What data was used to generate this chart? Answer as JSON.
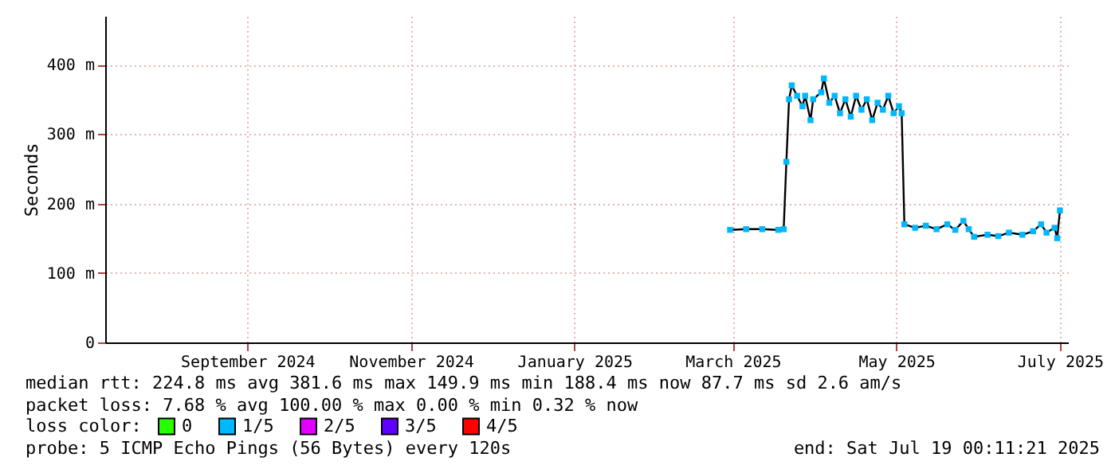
{
  "chart_data": {
    "type": "line",
    "ylabel": "Seconds",
    "legend_title": "loss color:",
    "legend": "bottom",
    "grid": true,
    "x": [
      "2025-03-14",
      "2025-03-20",
      "2025-03-26",
      "2025-04-01",
      "2025-04-03",
      "2025-04-04",
      "2025-04-05",
      "2025-04-06",
      "2025-04-08",
      "2025-04-10",
      "2025-04-11",
      "2025-04-13",
      "2025-04-14",
      "2025-04-17",
      "2025-04-18",
      "2025-04-20",
      "2025-04-22",
      "2025-04-24",
      "2025-04-26",
      "2025-04-28",
      "2025-04-30",
      "2025-05-02",
      "2025-05-04",
      "2025-05-06",
      "2025-05-08",
      "2025-05-10",
      "2025-05-12",
      "2025-05-14",
      "2025-05-16",
      "2025-05-17",
      "2025-05-18",
      "2025-05-22",
      "2025-05-26",
      "2025-05-30",
      "2025-06-03",
      "2025-06-06",
      "2025-06-09",
      "2025-06-11",
      "2025-06-13",
      "2025-06-18",
      "2025-06-22",
      "2025-06-26",
      "2025-07-01",
      "2025-07-05",
      "2025-07-08",
      "2025-07-10",
      "2025-07-13",
      "2025-07-14",
      "2025-07-15"
    ],
    "series": [
      {
        "type": "scatter",
        "name": "0",
        "color": "#26ff00",
        "values": [
          null,
          null,
          null,
          null,
          null,
          null,
          null,
          null,
          null,
          null,
          null,
          null,
          null,
          null,
          null,
          null,
          null,
          null,
          null,
          null,
          null,
          null,
          null,
          null,
          null,
          null,
          null,
          null,
          null,
          null,
          null,
          null,
          null,
          null,
          null,
          null,
          null,
          null,
          null,
          null,
          null,
          null,
          null,
          null,
          null,
          null,
          null,
          null,
          null
        ]
      },
      {
        "type": "scatter",
        "name": "1/5",
        "color": "#00b8ff",
        "values": [
          162,
          163,
          163,
          162,
          163,
          260,
          350,
          370,
          355,
          340,
          355,
          320,
          350,
          360,
          380,
          345,
          355,
          330,
          350,
          325,
          355,
          335,
          350,
          320,
          345,
          335,
          355,
          330,
          340,
          330,
          170,
          165,
          168,
          163,
          170,
          162,
          175,
          163,
          152,
          155,
          153,
          158,
          155,
          160,
          170,
          158,
          165,
          150,
          190
        ]
      },
      {
        "type": "scatter",
        "name": "2/5",
        "color": "#e000ff",
        "values": [
          null,
          null,
          null,
          null,
          null,
          null,
          null,
          null,
          null,
          null,
          null,
          null,
          null,
          null,
          null,
          null,
          null,
          null,
          null,
          null,
          null,
          null,
          null,
          null,
          null,
          null,
          null,
          null,
          null,
          null,
          null,
          null,
          null,
          null,
          null,
          null,
          null,
          null,
          null,
          null,
          null,
          null,
          null,
          null,
          null,
          null,
          null,
          null,
          null
        ]
      },
      {
        "type": "scatter",
        "name": "3/5",
        "color": "#5e00ff",
        "values": [
          null,
          null,
          null,
          null,
          null,
          null,
          null,
          null,
          null,
          null,
          null,
          null,
          null,
          null,
          null,
          null,
          null,
          null,
          null,
          null,
          null,
          null,
          null,
          null,
          null,
          null,
          null,
          null,
          null,
          null,
          null,
          null,
          null,
          null,
          null,
          null,
          null,
          null,
          null,
          null,
          null,
          null,
          null,
          null,
          null,
          null,
          null,
          null,
          null
        ]
      },
      {
        "type": "scatter",
        "name": "4/5",
        "color": "#ff0000",
        "values": [
          null,
          null,
          null,
          null,
          null,
          null,
          null,
          null,
          null,
          null,
          null,
          null,
          null,
          null,
          null,
          null,
          null,
          null,
          null,
          null,
          null,
          null,
          null,
          null,
          null,
          null,
          null,
          null,
          null,
          null,
          null,
          null,
          null,
          null,
          null,
          null,
          null,
          null,
          null,
          null,
          null,
          null,
          null,
          null,
          null,
          null,
          null,
          null,
          null
        ]
      },
      {
        "color": "#000000",
        "values": [
          162,
          163,
          163,
          162,
          163,
          260,
          350,
          370,
          355,
          340,
          355,
          320,
          350,
          360,
          380,
          345,
          355,
          330,
          350,
          325,
          355,
          335,
          350,
          320,
          345,
          335,
          355,
          330,
          340,
          330,
          170,
          165,
          168,
          163,
          170,
          162,
          175,
          163,
          152,
          155,
          153,
          158,
          155,
          160,
          170,
          158,
          165,
          150,
          190
        ]
      }
    ],
    "xlim": [
      "2024-07-24",
      "2025-07-18"
    ],
    "xticks": [
      {
        "value": "2024-09-15",
        "label": "September 2024"
      },
      {
        "value": "2024-11-15",
        "label": "November 2024"
      },
      {
        "value": "2025-01-15",
        "label": "January 2025"
      },
      {
        "value": "2025-03-15",
        "label": "March 2025"
      },
      {
        "value": "2025-05-15",
        "label": "May 2025"
      },
      {
        "value": "2025-07-15",
        "label": "July 2025"
      }
    ],
    "ylim": [
      0,
      470
    ],
    "yticks": [
      0,
      {
        "value": 100,
        "label": "100 m"
      },
      {
        "value": 200,
        "label": "200 m"
      },
      {
        "value": 300,
        "label": "300 m"
      },
      {
        "value": 400,
        "label": "400 m"
      }
    ],
    "annotations": [
      "median rtt:  224.8 ms avg  381.6 ms max  149.9 ms min  188.4 ms now  87.7 ms sd  2.6   am/s",
      "packet loss: 7.68 % avg  100.00 % max   0.00 % min  0.32 % now",
      "probe:       5 ICMP Echo Pings (56 Bytes) every 120s",
      "end: Sat Jul 19 00:11:21 2025"
    ]
  }
}
